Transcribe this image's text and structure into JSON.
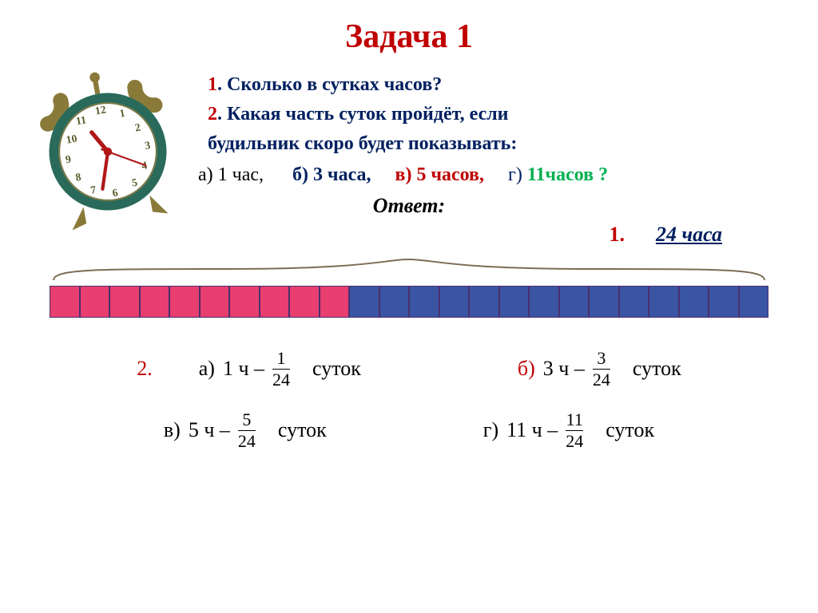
{
  "title": "Задача 1",
  "title_color": "#c00000",
  "q1_num": "1",
  "q1_text": ". Сколько в сутках часов?",
  "q2_num": "2",
  "q2_line1": ". Какая часть суток пройдёт, если",
  "q2_line2": "будильник  скоро будет показывать:",
  "opt_a_lbl": "а) ",
  "opt_a_val": "1 час,",
  "opt_b_lbl": "б) ",
  "opt_b_val": "3 часа,",
  "opt_c_lbl": "в) ",
  "opt_c_val": "5 часов,",
  "opt_d_lbl": "г) ",
  "opt_d_val": "11часов ?",
  "answer_hdr": "Ответ:",
  "answer_num": "1.",
  "answer_val": "24 часа",
  "bar": {
    "total_segments": 24,
    "pink_count": 10,
    "pink_color": "#e83e70",
    "blue_color": "#3a55a3",
    "border_color": "#4a2f6e"
  },
  "brace_color": "#7c6b55",
  "row2_num": "2.",
  "ans_a_lbl": "а)  ",
  "ans_a_pre": "1 ч – ",
  "ans_a_numer": "1",
  "ans_a_denom": "24",
  "ans_a_post": "суток",
  "ans_b_lbl": "б)  ",
  "ans_b_pre": "3 ч – ",
  "ans_b_numer": "3",
  "ans_b_denom": "24",
  "ans_b_post": "суток",
  "ans_c_lbl": "в)   ",
  "ans_c_pre": "5 ч – ",
  "ans_c_numer": "5",
  "ans_c_denom": "24",
  "ans_c_post": "суток",
  "ans_d_lbl": "г) ",
  "ans_d_pre": "11 ч – ",
  "ans_d_numer": "11",
  "ans_d_denom": "24",
  "ans_d_post": "суток",
  "clock": {
    "ring_color": "#2a6a5a",
    "face_color": "#ffffff",
    "number_color": "#5a5a2a",
    "hand_color": "#b01818",
    "bell_color": "#8a7a3a",
    "hour_angle": -30,
    "minute_angle": 198,
    "second_angle": 120
  }
}
